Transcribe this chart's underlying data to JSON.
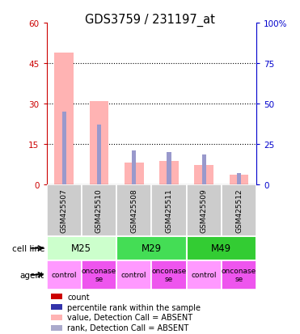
{
  "title": "GDS3759 / 231197_at",
  "samples": [
    "GSM425507",
    "GSM425510",
    "GSM425508",
    "GSM425511",
    "GSM425509",
    "GSM425512"
  ],
  "pink_bars": [
    49,
    31,
    8,
    8.5,
    7,
    3.5
  ],
  "blue_bars": [
    27,
    22,
    12.5,
    12,
    11,
    4
  ],
  "left_ylim": [
    0,
    60
  ],
  "right_ylim": [
    0,
    100
  ],
  "left_yticks": [
    0,
    15,
    30,
    45,
    60
  ],
  "right_yticks": [
    0,
    25,
    50,
    75,
    100
  ],
  "right_yticklabels": [
    "0",
    "25",
    "50",
    "75",
    "100%"
  ],
  "cell_lines": [
    {
      "label": "M25",
      "start": 0,
      "end": 2,
      "color": "#ccffcc"
    },
    {
      "label": "M29",
      "start": 2,
      "end": 4,
      "color": "#44dd55"
    },
    {
      "label": "M49",
      "start": 4,
      "end": 6,
      "color": "#33cc33"
    }
  ],
  "agents": [
    "control",
    "onconase\nse",
    "control",
    "onconase\nse",
    "control",
    "onconase\nse"
  ],
  "agent_display": [
    "control",
    "onconase\nse",
    "control",
    "onconase\nse",
    "control",
    "onconase\nse"
  ],
  "agent_colors": [
    "#ff99ff",
    "#ee55ee",
    "#ff99ff",
    "#ee55ee",
    "#ff99ff",
    "#ee55ee"
  ],
  "pink_color": "#ffb3b3",
  "blue_color": "#9999cc",
  "red_color": "#cc0000",
  "dark_blue_color": "#3333aa",
  "legend_items": [
    {
      "label": "count",
      "color": "#cc0000"
    },
    {
      "label": "percentile rank within the sample",
      "color": "#3333aa"
    },
    {
      "label": "value, Detection Call = ABSENT",
      "color": "#ffb3b3"
    },
    {
      "label": "rank, Detection Call = ABSENT",
      "color": "#aaaacc"
    }
  ],
  "xlabel_color": "#cc0000",
  "ylabel_right_color": "#0000cc",
  "sample_box_color": "#cccccc",
  "grid_yticks": [
    15,
    30,
    45
  ]
}
